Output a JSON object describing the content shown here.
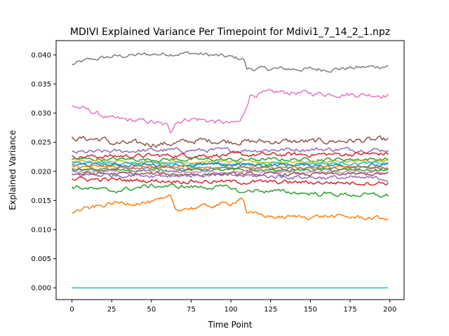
{
  "chart_data": {
    "type": "line",
    "title": "MDIVI Explained Variance Per Timepoint for Mdivi1_7_14_2_1.npz",
    "xlabel": "Time Point",
    "ylabel": "Explained Variance",
    "xlim": [
      -9.95,
      208.95
    ],
    "ylim": [
      -0.00202,
      0.04245
    ],
    "xticks": [
      0,
      25,
      50,
      75,
      100,
      125,
      150,
      175,
      200
    ],
    "xtick_labels": [
      "0",
      "25",
      "50",
      "75",
      "100",
      "125",
      "150",
      "175",
      "200"
    ],
    "yticks": [
      0.0,
      0.005,
      0.01,
      0.015,
      0.02,
      0.025,
      0.03,
      0.035,
      0.04
    ],
    "ytick_labels": [
      "0.000",
      "0.005",
      "0.010",
      "0.015",
      "0.020",
      "0.025",
      "0.030",
      "0.035",
      "0.040"
    ],
    "grid": false,
    "legend": "none",
    "n_points": 200,
    "series": [
      {
        "color": "#7f7f7f",
        "knots": [
          [
            0,
            0.0383
          ],
          [
            10,
            0.0391
          ],
          [
            25,
            0.0397
          ],
          [
            50,
            0.0401
          ],
          [
            75,
            0.0403
          ],
          [
            100,
            0.0396
          ],
          [
            108,
            0.0393
          ],
          [
            110,
            0.0376
          ],
          [
            130,
            0.0376
          ],
          [
            160,
            0.0375
          ],
          [
            199,
            0.0381
          ]
        ],
        "noise": 0.0003
      },
      {
        "color": "#e377c2",
        "knots": [
          [
            0,
            0.0313
          ],
          [
            10,
            0.0305
          ],
          [
            25,
            0.029
          ],
          [
            50,
            0.0285
          ],
          [
            60,
            0.0278
          ],
          [
            62,
            0.0268
          ],
          [
            65,
            0.0285
          ],
          [
            75,
            0.0291
          ],
          [
            100,
            0.0282
          ],
          [
            106,
            0.0285
          ],
          [
            108,
            0.0298
          ],
          [
            112,
            0.0331
          ],
          [
            130,
            0.0336
          ],
          [
            160,
            0.0333
          ],
          [
            199,
            0.0331
          ]
        ],
        "noise": 0.00035
      },
      {
        "color": "#8c564b",
        "knots": [
          [
            0,
            0.0257
          ],
          [
            20,
            0.0255
          ],
          [
            25,
            0.0248
          ],
          [
            60,
            0.0247
          ],
          [
            80,
            0.0253
          ],
          [
            110,
            0.0251
          ],
          [
            150,
            0.0251
          ],
          [
            199,
            0.0254
          ]
        ],
        "noise": 0.0004
      },
      {
        "color": "#9467bd",
        "knots": [
          [
            0,
            0.0232
          ],
          [
            50,
            0.0236
          ],
          [
            100,
            0.0236
          ],
          [
            150,
            0.0238
          ],
          [
            199,
            0.0237
          ]
        ],
        "noise": 0.0003
      },
      {
        "color": "#d62728",
        "knots": [
          [
            0,
            0.0225
          ],
          [
            50,
            0.0227
          ],
          [
            100,
            0.0228
          ],
          [
            150,
            0.0229
          ],
          [
            199,
            0.023
          ]
        ],
        "noise": 0.0003
      },
      {
        "color": "#2ca02c",
        "knots": [
          [
            0,
            0.0221
          ],
          [
            100,
            0.022
          ],
          [
            199,
            0.0221
          ]
        ],
        "noise": 0.00025
      },
      {
        "color": "#bcbd22",
        "knots": [
          [
            0,
            0.0217
          ],
          [
            100,
            0.0216
          ],
          [
            199,
            0.0217
          ]
        ],
        "noise": 0.0002
      },
      {
        "color": "#17becf",
        "knots": [
          [
            0,
            0.0214
          ],
          [
            100,
            0.0213
          ],
          [
            199,
            0.0214
          ]
        ],
        "noise": 0.0002
      },
      {
        "color": "#1f77b4",
        "knots": [
          [
            0,
            0.0211
          ],
          [
            100,
            0.0211
          ],
          [
            199,
            0.021
          ]
        ],
        "noise": 0.00025
      },
      {
        "color": "#ff7f0e",
        "knots": [
          [
            0,
            0.0208
          ],
          [
            100,
            0.0207
          ],
          [
            199,
            0.0207
          ]
        ],
        "noise": 0.0002
      },
      {
        "color": "#7f7f7f",
        "knots": [
          [
            0,
            0.0205
          ],
          [
            100,
            0.0205
          ],
          [
            199,
            0.0205
          ]
        ],
        "noise": 0.0002
      },
      {
        "color": "#2ca02c",
        "knots": [
          [
            0,
            0.0202
          ],
          [
            100,
            0.0202
          ],
          [
            199,
            0.0202
          ]
        ],
        "noise": 0.0002
      },
      {
        "color": "#e377c2",
        "knots": [
          [
            0,
            0.0199
          ],
          [
            100,
            0.0199
          ],
          [
            199,
            0.0198
          ]
        ],
        "noise": 0.0002
      },
      {
        "color": "#8c564b",
        "knots": [
          [
            0,
            0.0196
          ],
          [
            100,
            0.0195
          ],
          [
            199,
            0.0195
          ]
        ],
        "noise": 0.00025
      },
      {
        "color": "#9467bd",
        "knots": [
          [
            0,
            0.0194
          ],
          [
            100,
            0.0193
          ],
          [
            199,
            0.0187
          ]
        ],
        "noise": 0.0003
      },
      {
        "color": "#d62728",
        "knots": [
          [
            0,
            0.0187
          ],
          [
            50,
            0.0184
          ],
          [
            100,
            0.0182
          ],
          [
            150,
            0.0181
          ],
          [
            199,
            0.018
          ]
        ],
        "noise": 0.0003
      },
      {
        "color": "#2ca02c",
        "knots": [
          [
            0,
            0.0174
          ],
          [
            25,
            0.0166
          ],
          [
            50,
            0.0175
          ],
          [
            100,
            0.0172
          ],
          [
            108,
            0.0162
          ],
          [
            112,
            0.0168
          ],
          [
            150,
            0.0162
          ],
          [
            199,
            0.0158
          ]
        ],
        "noise": 0.0003
      },
      {
        "color": "#ff7f0e",
        "knots": [
          [
            0,
            0.013
          ],
          [
            10,
            0.0136
          ],
          [
            25,
            0.0145
          ],
          [
            50,
            0.0147
          ],
          [
            60,
            0.0152
          ],
          [
            62,
            0.0158
          ],
          [
            65,
            0.0135
          ],
          [
            75,
            0.0137
          ],
          [
            100,
            0.0145
          ],
          [
            106,
            0.0155
          ],
          [
            108,
            0.0152
          ],
          [
            110,
            0.0128
          ],
          [
            130,
            0.0121
          ],
          [
            160,
            0.0123
          ],
          [
            199,
            0.0119
          ]
        ],
        "noise": 0.0003
      },
      {
        "color": "#1f77b4",
        "knots": [
          [
            0,
            0.0
          ],
          [
            199,
            0.0
          ]
        ],
        "noise": 0
      },
      {
        "color": "#17becf",
        "knots": [
          [
            0,
            0.0
          ],
          [
            199,
            0.0
          ]
        ],
        "noise": 0
      }
    ]
  }
}
